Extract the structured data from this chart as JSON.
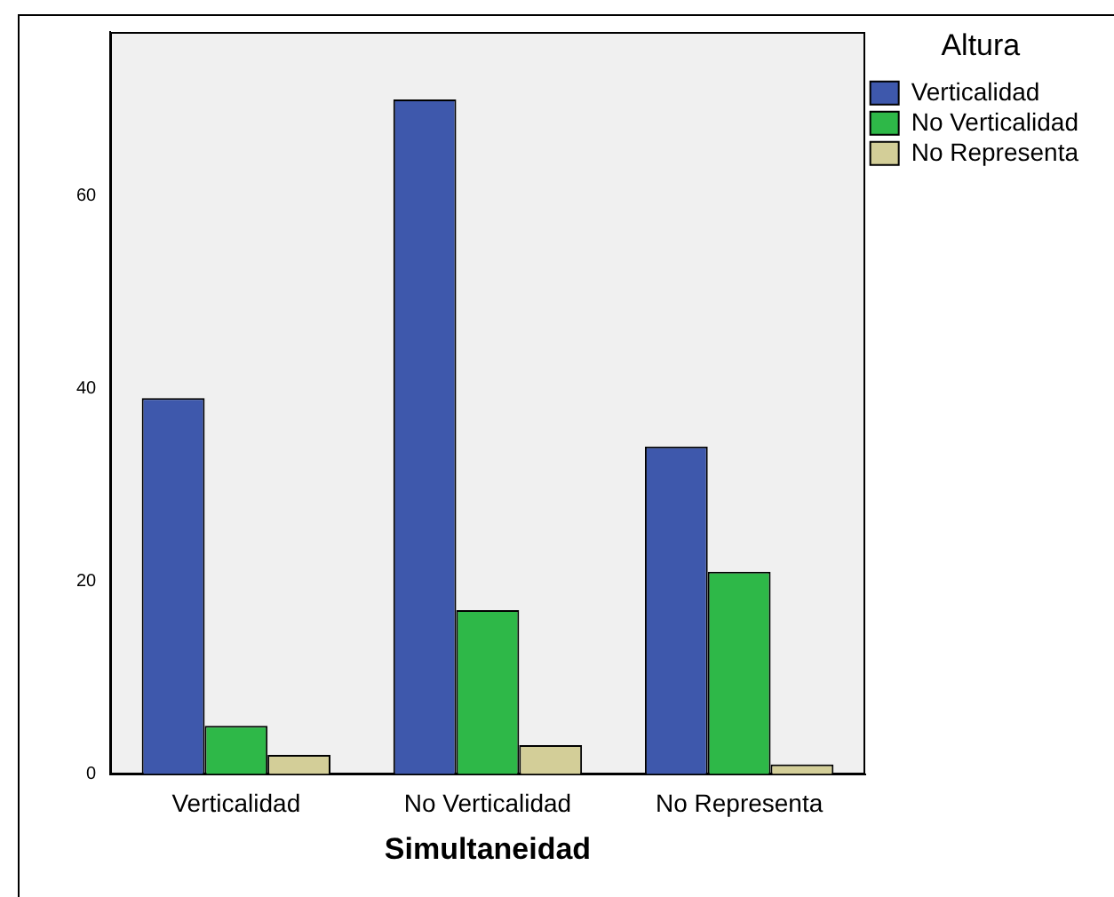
{
  "chart_data": {
    "type": "bar",
    "xlabel": "Simultaneidad",
    "legend_title": "Altura",
    "categories": [
      "Verticalidad",
      "No Verticalidad",
      "No Representa"
    ],
    "series": [
      {
        "name": "Verticalidad",
        "color": "#3e58ac",
        "values": [
          39,
          70,
          34
        ]
      },
      {
        "name": "No Verticalidad",
        "color": "#2eb848",
        "values": [
          5,
          17,
          21
        ]
      },
      {
        "name": "No Representa",
        "color": "#d3ce98",
        "values": [
          2,
          3,
          1
        ]
      }
    ],
    "ylim": [
      0,
      77
    ],
    "yticks": [
      0,
      20,
      40,
      60
    ],
    "grid": false,
    "legend": "top right"
  }
}
